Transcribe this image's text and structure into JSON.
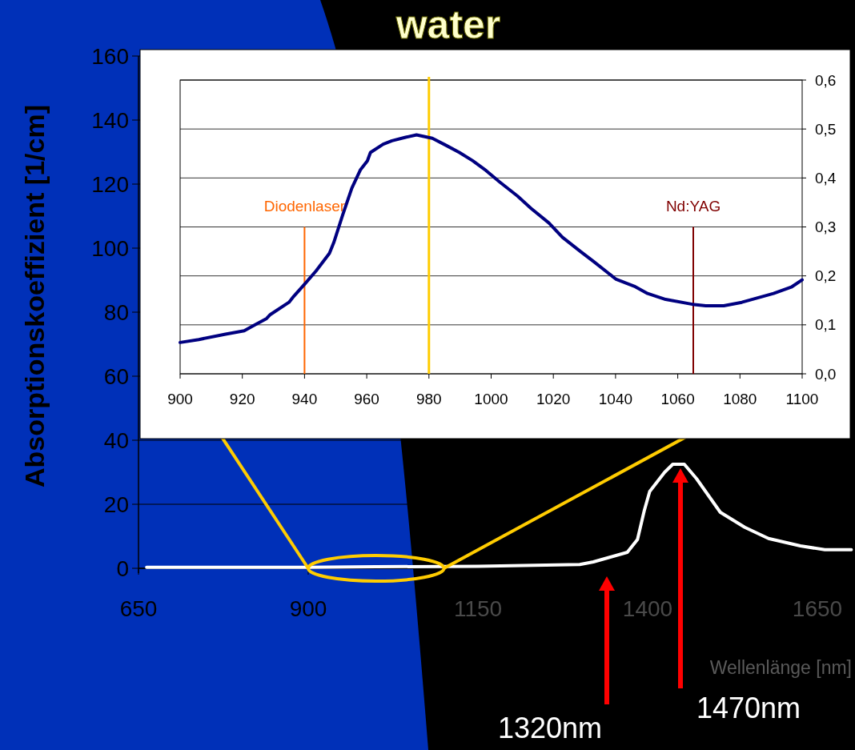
{
  "chart_data": [
    {
      "type": "line",
      "title": "water",
      "xlabel": "Wellenlänge [nm]",
      "ylabel": "Absorptionskoeffizient [1/cm]",
      "x": [
        662,
        900,
        1000,
        1150,
        1250,
        1300,
        1320,
        1345,
        1370,
        1385,
        1395,
        1403,
        1425,
        1437,
        1454,
        1472,
        1507,
        1543,
        1578,
        1625,
        1661,
        1700
      ],
      "series": [
        {
          "color": "#ffffff",
          "values": [
            0.3,
            0.3,
            0.5,
            0.6,
            1.0,
            1.2,
            2,
            3.5,
            5,
            9,
            18,
            24,
            30,
            32.5,
            32.5,
            28,
            17.5,
            12.8,
            9.3,
            7,
            5.8,
            5.8
          ]
        }
      ],
      "xlim": [
        650,
        1700
      ],
      "xticks": [
        650,
        900,
        1150,
        1400,
        1650
      ],
      "ylim": [
        0,
        160
      ],
      "yticks": [
        0,
        20,
        40,
        60,
        80,
        100,
        120,
        140,
        160
      ],
      "grid": "y",
      "annotations": [
        "1320nm",
        "1470nm"
      ]
    },
    {
      "type": "line",
      "x": [
        900,
        906,
        914.6,
        920.6,
        923.5,
        927.8,
        929,
        935,
        936.5,
        940,
        943.7,
        948,
        949.4,
        952.3,
        955.2,
        958,
        960.2,
        961.2,
        965.3,
        968.1,
        972.5,
        976,
        981.1,
        985.4,
        989.8,
        994.1,
        998.4,
        1002.7,
        1008.5,
        1012.8,
        1018.6,
        1022.9,
        1028.7,
        1033,
        1040.2,
        1046,
        1050.3,
        1056.1,
        1064.7,
        1069,
        1074.8,
        1080.6,
        1090.8,
        1096.5,
        1100
      ],
      "series": [
        {
          "color": "#000080",
          "values": [
            0.064,
            0.07,
            0.081,
            0.088,
            0.098,
            0.113,
            0.121,
            0.146,
            0.158,
            0.183,
            0.21,
            0.246,
            0.268,
            0.325,
            0.379,
            0.417,
            0.435,
            0.452,
            0.469,
            0.476,
            0.483,
            0.488,
            0.481,
            0.467,
            0.452,
            0.435,
            0.415,
            0.392,
            0.363,
            0.338,
            0.308,
            0.279,
            0.25,
            0.229,
            0.193,
            0.179,
            0.164,
            0.152,
            0.142,
            0.139,
            0.139,
            0.146,
            0.164,
            0.177,
            0.192
          ]
        }
      ],
      "xlim": [
        900,
        1100
      ],
      "xticks": [
        900,
        920,
        940,
        960,
        980,
        1000,
        1020,
        1040,
        1060,
        1080,
        1100
      ],
      "ylim": [
        0,
        0.6
      ],
      "yticks": [
        {
          "value": 0,
          "label": "0,0"
        },
        {
          "value": 0.1,
          "label": "0,1"
        },
        {
          "value": 0.2,
          "label": "0,2"
        },
        {
          "value": 0.3,
          "label": "0,3"
        },
        {
          "value": 0.4,
          "label": "0,4"
        },
        {
          "value": 0.5,
          "label": "0,5"
        },
        {
          "value": 0.6,
          "label": "0,6"
        }
      ],
      "grid": "y",
      "ref_lines": [
        {
          "axis": "x",
          "value": 940,
          "label": "Diodenlaser",
          "color": "#ff6600"
        },
        {
          "axis": "x",
          "value": 980,
          "color": "#ffcc00"
        },
        {
          "axis": "x",
          "value": 1065,
          "label": "Nd:YAG",
          "color": "#800000"
        }
      ]
    }
  ]
}
